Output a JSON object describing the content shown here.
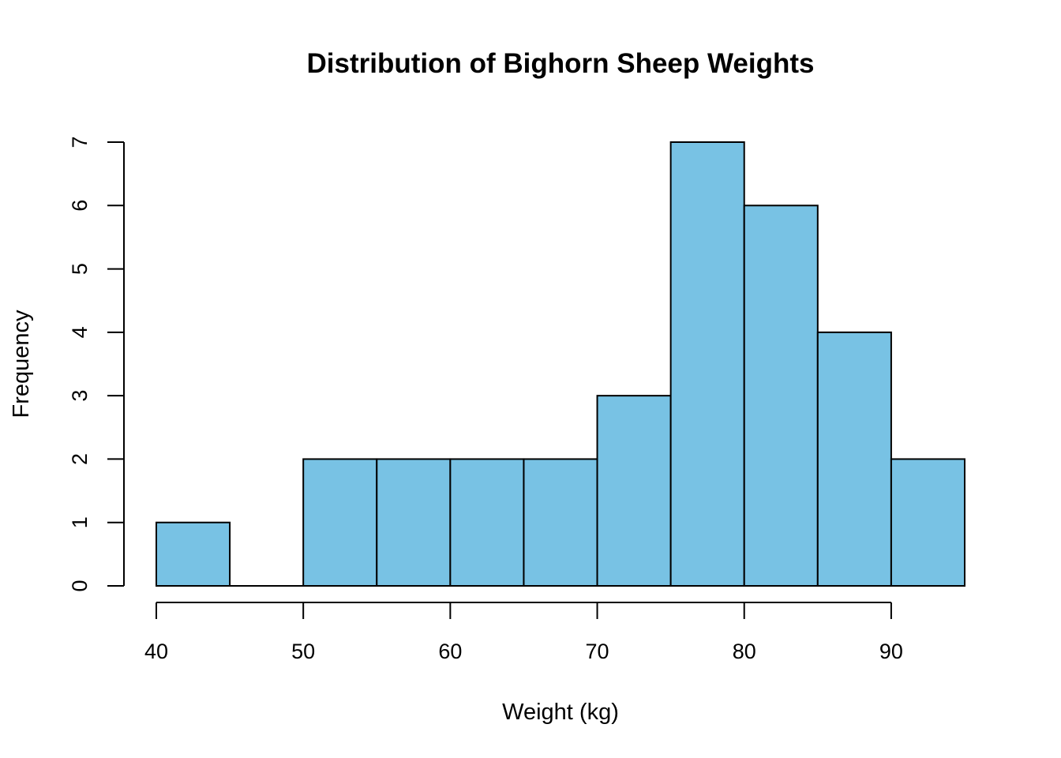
{
  "chart_data": {
    "type": "bar",
    "title": "Distribution of Bighorn Sheep Weights",
    "xlabel": "Weight (kg)",
    "ylabel": "Frequency",
    "bin_edges": [
      40,
      45,
      50,
      55,
      60,
      65,
      70,
      75,
      80,
      85,
      90,
      95
    ],
    "values": [
      1,
      0,
      2,
      2,
      2,
      2,
      3,
      7,
      6,
      4,
      2
    ],
    "xlim": [
      40,
      95
    ],
    "ylim": [
      0,
      7
    ],
    "x_ticks": [
      40,
      50,
      60,
      70,
      80,
      90
    ],
    "x_tick_labels": [
      "40",
      "50",
      "60",
      "70",
      "80",
      "90"
    ],
    "y_ticks": [
      0,
      1,
      2,
      3,
      4,
      5,
      6,
      7
    ],
    "y_tick_labels": [
      "0",
      "1",
      "2",
      "3",
      "4",
      "5",
      "6",
      "7"
    ],
    "grid": false,
    "legend": "none",
    "bar_color": "#78c2e4",
    "edge_color": "#000000"
  }
}
